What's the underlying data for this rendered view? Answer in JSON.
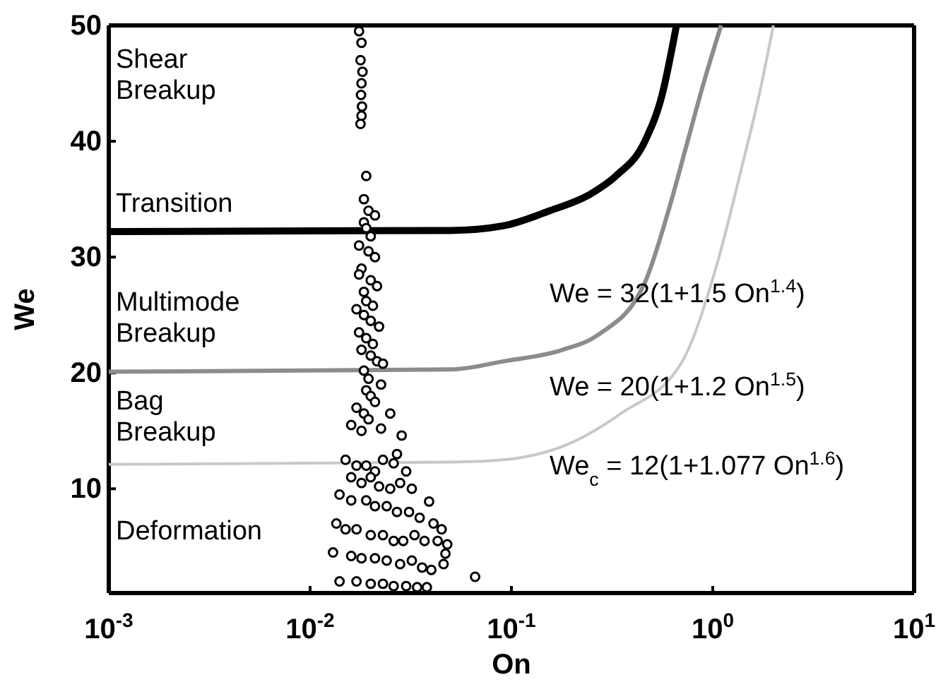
{
  "chart_data": {
    "type": "line",
    "xlabel": "On",
    "ylabel": "We",
    "log": "x",
    "xlim": [
      0.001,
      10
    ],
    "ylim": [
      1,
      50
    ],
    "xticks": [
      {
        "value": 0.001,
        "label": "10$^{-3}$"
      },
      {
        "value": 0.01,
        "label": "10$^{-2}$"
      },
      {
        "value": 0.1,
        "label": "10$^{-1}$"
      },
      {
        "value": 1,
        "label": "10$^{0}$"
      },
      {
        "value": 10,
        "label": "10$^{1}$"
      }
    ],
    "yticks": [
      10,
      20,
      30,
      40,
      50
    ],
    "grid": false,
    "annotations": [
      "Shear Breakup",
      "Transition",
      "Multimode Breakup",
      "Bag Breakup",
      "Deformation",
      "We  = 32(1+1.5 On$^{1.4}$)",
      "We  = 20(1+1.2 On$^{1.5}$)",
      "We$_{c}$ = 12(1+1.077 On$^{1.6}$)"
    ],
    "series": [
      {
        "type": "line",
        "color": "#000000",
        "x": [
          0.001,
          0.05,
          0.091,
          0.155,
          0.25,
          0.33,
          0.46,
          0.56,
          0.66
        ],
        "values": [
          32.2,
          32.3,
          32.7,
          34,
          35.5,
          37,
          40,
          44,
          50
        ]
      },
      {
        "type": "line",
        "color": "#8c8c8c",
        "x": [
          0.001,
          0.05,
          0.091,
          0.18,
          0.27,
          0.46,
          0.6,
          0.75,
          0.9,
          1.1
        ],
        "values": [
          20.1,
          20.3,
          21,
          22,
          23.3,
          27.8,
          33.9,
          40,
          45,
          50
        ]
      },
      {
        "type": "line",
        "color": "#c8c8c8",
        "x": [
          0.001,
          0.05,
          0.091,
          0.2,
          0.35,
          0.7,
          1.05,
          1.4,
          1.7,
          2.0
        ],
        "values": [
          12.1,
          12.3,
          12.5,
          14,
          16.5,
          20.9,
          29.4,
          37.9,
          44,
          50
        ]
      },
      {
        "type": "scatter",
        "color": "#000000",
        "marker": "circle",
        "x": [
          0.0175,
          0.018,
          0.0178,
          0.0182,
          0.018,
          0.0179,
          0.0181,
          0.018,
          0.0178,
          0.019,
          0.0185,
          0.0195,
          0.021,
          0.0185,
          0.019,
          0.02,
          0.0175,
          0.0195,
          0.021,
          0.018,
          0.0175,
          0.02,
          0.0215,
          0.0185,
          0.019,
          0.0205,
          0.017,
          0.0185,
          0.02,
          0.022,
          0.0175,
          0.019,
          0.0205,
          0.018,
          0.02,
          0.0215,
          0.023,
          0.0185,
          0.0195,
          0.0285,
          0.0225,
          0.019,
          0.02,
          0.021,
          0.017,
          0.0185,
          0.0195,
          0.016,
          0.018,
          0.0225,
          0.025,
          0.027,
          0.015,
          0.017,
          0.019,
          0.021,
          0.023,
          0.026,
          0.03,
          0.016,
          0.018,
          0.02,
          0.022,
          0.025,
          0.028,
          0.032,
          0.039,
          0.014,
          0.016,
          0.019,
          0.021,
          0.024,
          0.027,
          0.031,
          0.035,
          0.041,
          0.045,
          0.0135,
          0.015,
          0.017,
          0.02,
          0.023,
          0.026,
          0.029,
          0.033,
          0.037,
          0.043,
          0.048,
          0.047,
          0.066,
          0.013,
          0.016,
          0.018,
          0.021,
          0.024,
          0.028,
          0.032,
          0.036,
          0.04,
          0.046,
          0.014,
          0.017,
          0.02,
          0.023,
          0.026,
          0.03,
          0.034,
          0.038
        ],
        "values": [
          49.5,
          48.5,
          47,
          46,
          45,
          44,
          43,
          42.2,
          41.5,
          37,
          35,
          34,
          33.6,
          33,
          32.5,
          31.8,
          31,
          30.5,
          30,
          29,
          28.5,
          28,
          27.5,
          27,
          26.2,
          25.8,
          25.5,
          25,
          24.5,
          24,
          23.5,
          23,
          22.5,
          22,
          21.5,
          21,
          20.8,
          20.2,
          19.5,
          14.6,
          19,
          18.5,
          18,
          17.5,
          17,
          16.5,
          16,
          15.5,
          15,
          15.2,
          16.5,
          13,
          12.5,
          12,
          12,
          11.5,
          12.5,
          12.2,
          11.5,
          11,
          10.5,
          11,
          10.2,
          10,
          10.5,
          10,
          8.9,
          9.5,
          9,
          9,
          8.5,
          8.5,
          8,
          8,
          7.5,
          7,
          6.5,
          7,
          6.5,
          6.5,
          6,
          6,
          5.5,
          5.5,
          6,
          5.5,
          5.5,
          5.2,
          4.4,
          2.4,
          4.5,
          4.2,
          4,
          4,
          3.8,
          3.5,
          3.8,
          3.2,
          3,
          3.5,
          2,
          2,
          1.8,
          1.8,
          1.6,
          1.6,
          1.5,
          1.5
        ]
      }
    ]
  }
}
